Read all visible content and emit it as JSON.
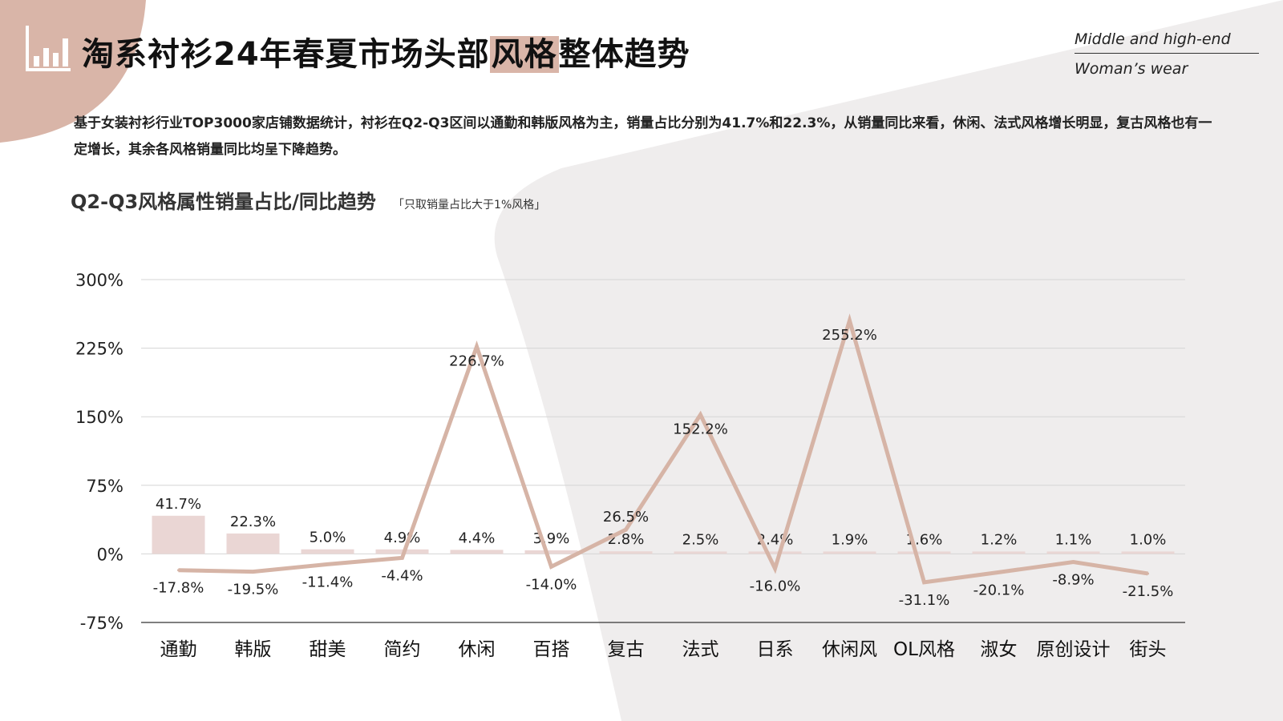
{
  "header": {
    "title_prefix": "淘系衬衫24年春夏市场头部",
    "title_highlight": "风格",
    "title_suffix": "整体趋势",
    "brand_line1": "Middle and high-end",
    "brand_line2": "Woman’s wear",
    "logo_icon": "bar-chart-icon"
  },
  "description": "基于女装衬衫行业TOP3000家店铺数据统计，衬衫在Q2-Q3区间以通勤和韩版风格为主，销量占比分别为41.7%和22.3%，从销量同比来看，休闲、法式风格增长明显，复古风格也有一定增长，其余各风格销量同比均呈下降趋势。",
  "subtitle": "Q2-Q3风格属性销量占比/同比趋势",
  "subtitle_note": "「只取销量占比大于1%风格」",
  "colors": {
    "accent": "#d9b5a8",
    "bar": "#ead6d4",
    "line": "#d6b4a6",
    "bg_shape": "#efeded",
    "grid": "#d5d5d5"
  },
  "chart_data": {
    "type": "bar",
    "categories": [
      "通勤",
      "韩版",
      "甜美",
      "简约",
      "休闲",
      "百搭",
      "复古",
      "法式",
      "日系",
      "休闲风",
      "OL风格",
      "淑女",
      "原创设计",
      "街头"
    ],
    "series": [
      {
        "type": "bar",
        "values": [
          41.7,
          22.3,
          5.0,
          4.9,
          4.4,
          3.9,
          2.8,
          2.5,
          2.4,
          1.9,
          1.6,
          1.2,
          1.1,
          1.0
        ],
        "labels": [
          "41.7%",
          "22.3%",
          "5.0%",
          "4.9%",
          "4.4%",
          "3.9%",
          "2.8%",
          "2.5%",
          "2.4%",
          "1.9%",
          "1.6%",
          "1.2%",
          "1.1%",
          "1.0%"
        ]
      },
      {
        "type": "line",
        "values": [
          -17.8,
          -19.5,
          -11.4,
          -4.4,
          226.7,
          -14.0,
          26.5,
          152.2,
          -16.0,
          255.2,
          -31.1,
          -20.1,
          -8.9,
          -21.5
        ],
        "labels": [
          "-17.8%",
          "-19.5%",
          "-11.4%",
          "-4.4%",
          "226.7%",
          "-14.0%",
          "26.5%",
          "152.2%",
          "-16.0%",
          "255.2%",
          "-31.1%",
          "-20.1%",
          "-8.9%",
          "-21.5%"
        ]
      }
    ],
    "y_ticks": [
      "300%",
      "225%",
      "150%",
      "75%",
      "0%",
      "-75%"
    ],
    "y_tick_values": [
      300,
      225,
      150,
      75,
      0,
      -75
    ],
    "ylim": [
      -75,
      300
    ],
    "grid": true
  }
}
